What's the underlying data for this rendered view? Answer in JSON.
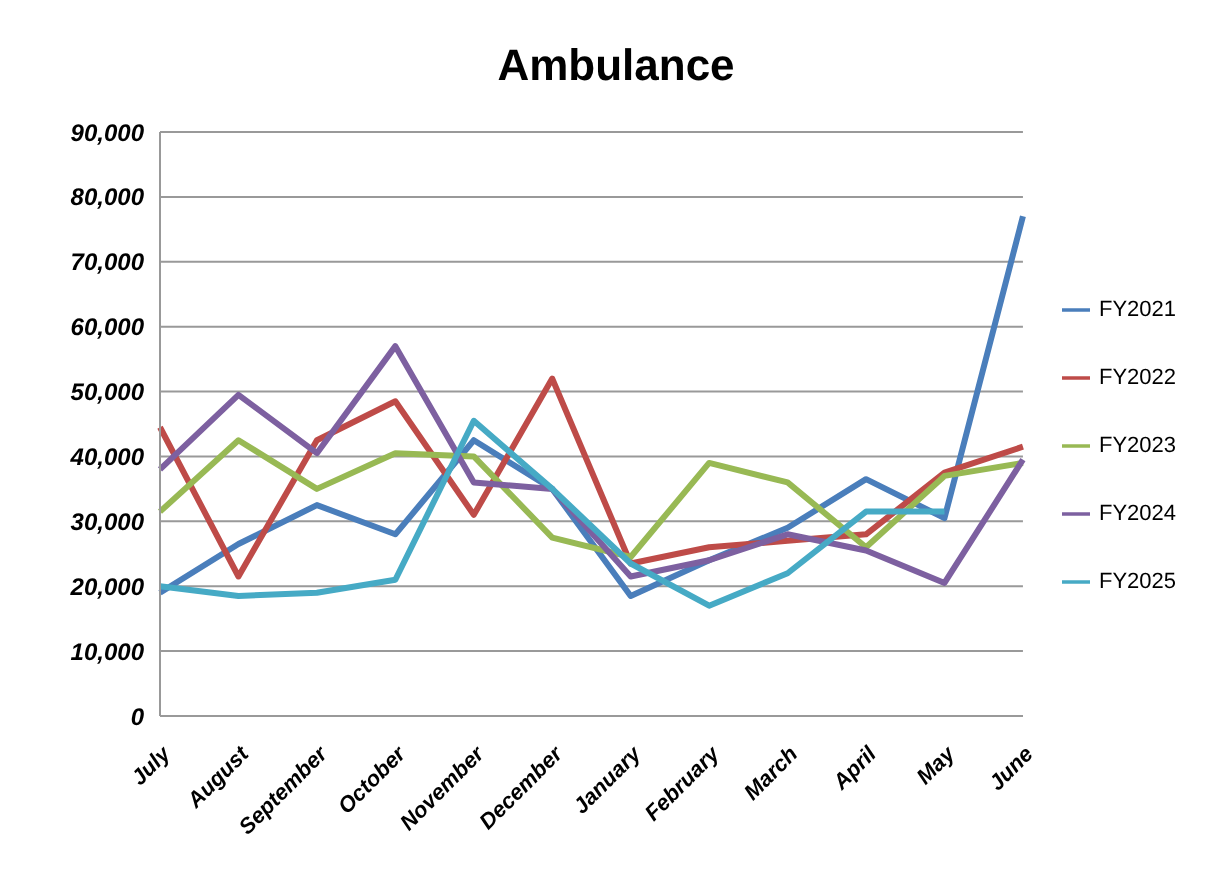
{
  "chart_data": {
    "type": "line",
    "title": "Ambulance",
    "categories": [
      "July",
      "August",
      "September",
      "October",
      "November",
      "December",
      "January",
      "February",
      "March",
      "April",
      "May",
      "June"
    ],
    "series": [
      {
        "name": "FY2021",
        "color": "#4a7ebb",
        "values": [
          19000,
          26500,
          32500,
          28000,
          42500,
          35000,
          18500,
          24000,
          29000,
          36500,
          30500,
          77000
        ]
      },
      {
        "name": "FY2022",
        "color": "#be4b48",
        "values": [
          44500,
          21500,
          42500,
          48500,
          31000,
          52000,
          23500,
          26000,
          27000,
          28000,
          37500,
          41500
        ]
      },
      {
        "name": "FY2023",
        "color": "#98b954",
        "values": [
          31500,
          42500,
          35000,
          40500,
          40000,
          27500,
          24500,
          39000,
          36000,
          26000,
          37000,
          39000
        ]
      },
      {
        "name": "FY2024",
        "color": "#7d60a0",
        "values": [
          38000,
          49500,
          40500,
          57000,
          36000,
          35000,
          21500,
          24000,
          28000,
          25500,
          20500,
          39500
        ]
      },
      {
        "name": "FY2025",
        "color": "#46aac5",
        "values": [
          20000,
          18500,
          19000,
          21000,
          45500,
          35000,
          23500,
          17000,
          22000,
          31500,
          31500,
          null
        ]
      }
    ],
    "ylim": [
      0,
      90000
    ],
    "yticks": [
      0,
      {
        "value": 10000,
        "label": "10,000"
      },
      {
        "value": 20000,
        "label": "20,000"
      },
      {
        "value": 30000,
        "label": "30,000"
      },
      {
        "value": 40000,
        "label": "40,000"
      },
      {
        "value": 50000,
        "label": "50,000"
      },
      {
        "value": 60000,
        "label": "60,000"
      },
      {
        "value": 70000,
        "label": "70,000"
      },
      {
        "value": 80000,
        "label": "80,000"
      },
      {
        "value": 90000,
        "label": "90,000"
      }
    ],
    "grid": "y",
    "legend": "right",
    "marker": "none",
    "line_style": "solid"
  }
}
